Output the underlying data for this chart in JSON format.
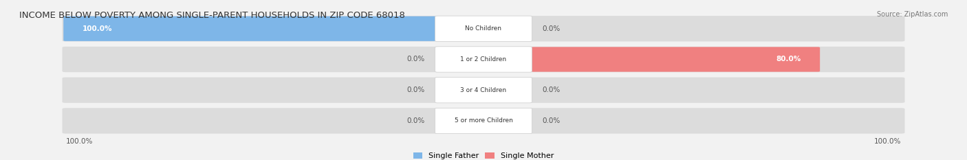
{
  "title": "INCOME BELOW POVERTY AMONG SINGLE-PARENT HOUSEHOLDS IN ZIP CODE 68018",
  "source": "Source: ZipAtlas.com",
  "categories": [
    "No Children",
    "1 or 2 Children",
    "3 or 4 Children",
    "5 or more Children"
  ],
  "single_father": [
    100.0,
    0.0,
    0.0,
    0.0
  ],
  "single_mother": [
    0.0,
    80.0,
    0.0,
    0.0
  ],
  "father_color": "#7EB6E8",
  "mother_color": "#F08080",
  "father_color_light": "#B8D9F5",
  "mother_color_light": "#F5B8C8",
  "bg_color": "#F0F0F0",
  "bar_bg_color": "#E8E8E8",
  "title_fontsize": 10,
  "axis_max": 100.0,
  "legend_father": "Single Father",
  "legend_mother": "Single Mother",
  "bottom_left_label": "100.0%",
  "bottom_right_label": "100.0%"
}
